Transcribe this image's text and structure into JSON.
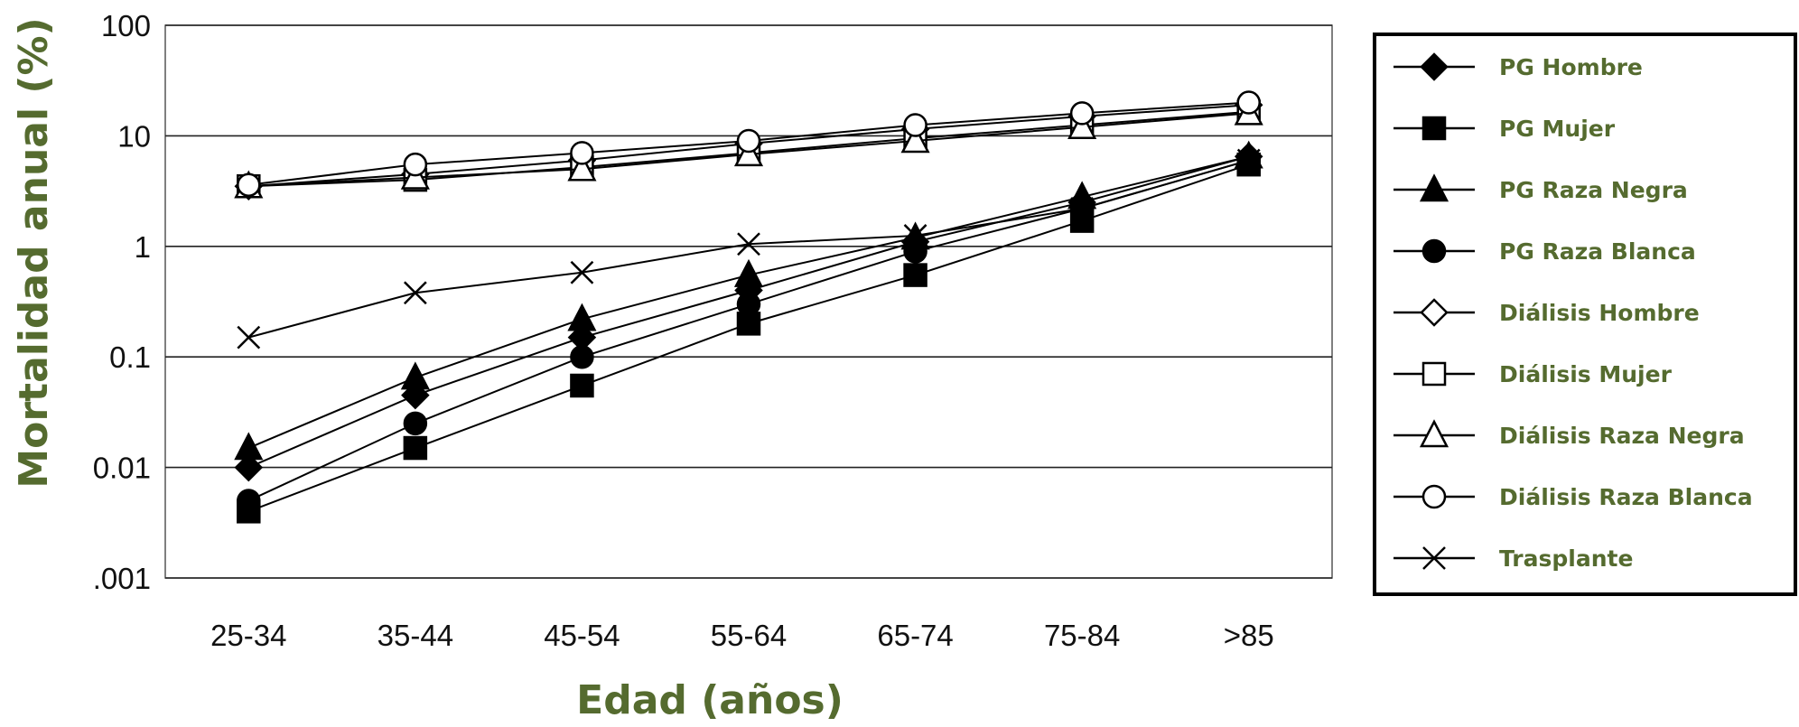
{
  "chart_data": {
    "type": "line",
    "ylabel": "Mortalidad anual (%)",
    "xlabel": "Edad (años)",
    "categories": [
      "25-34",
      "35-44",
      "45-54",
      "55-64",
      "65-74",
      "75-84",
      ">85"
    ],
    "y_scale": "log",
    "ylim": [
      0.001,
      100
    ],
    "y_ticks": [
      {
        "value": 100,
        "label": "100"
      },
      {
        "value": 10,
        "label": "10"
      },
      {
        "value": 1,
        "label": "1"
      },
      {
        "value": 0.1,
        "label": "0.1"
      },
      {
        "value": 0.01,
        "label": "0.01"
      },
      {
        "value": 0.001,
        "label": ".001"
      }
    ],
    "grid": "horizontal",
    "legend_position": "right",
    "series": [
      {
        "name": "PG Hombre",
        "marker": "diamond-filled",
        "values": [
          0.01,
          0.045,
          0.15,
          0.4,
          1.1,
          2.5,
          6.5
        ]
      },
      {
        "name": "PG Mujer",
        "marker": "square-filled",
        "values": [
          0.004,
          0.015,
          0.055,
          0.2,
          0.55,
          1.7,
          5.5
        ]
      },
      {
        "name": "PG Raza Negra",
        "marker": "triangle-filled",
        "values": [
          0.015,
          0.065,
          0.22,
          0.55,
          1.2,
          2.8,
          6.5
        ]
      },
      {
        "name": "PG Raza Blanca",
        "marker": "circle-filled",
        "values": [
          0.005,
          0.025,
          0.1,
          0.3,
          0.9,
          2.2,
          6.0
        ]
      },
      {
        "name": "Diálisis Hombre",
        "marker": "diamond-open",
        "values": [
          3.5,
          4.5,
          6.0,
          8.5,
          11.5,
          15.0,
          19.0
        ]
      },
      {
        "name": "Diálisis Mujer",
        "marker": "square-open",
        "values": [
          3.5,
          4.0,
          5.2,
          7.0,
          9.5,
          12.5,
          16.5
        ]
      },
      {
        "name": "Diálisis Raza Negra",
        "marker": "triangle-open",
        "values": [
          3.5,
          4.2,
          5.0,
          6.8,
          9.0,
          12.0,
          16.0
        ]
      },
      {
        "name": "Diálisis Raza Blanca",
        "marker": "circle-open",
        "values": [
          3.6,
          5.5,
          7.0,
          9.0,
          12.5,
          16.0,
          20.0
        ]
      },
      {
        "name": "Trasplante",
        "marker": "x",
        "values": [
          0.15,
          0.38,
          0.58,
          1.05,
          1.25,
          2.2,
          6.0
        ]
      }
    ]
  }
}
